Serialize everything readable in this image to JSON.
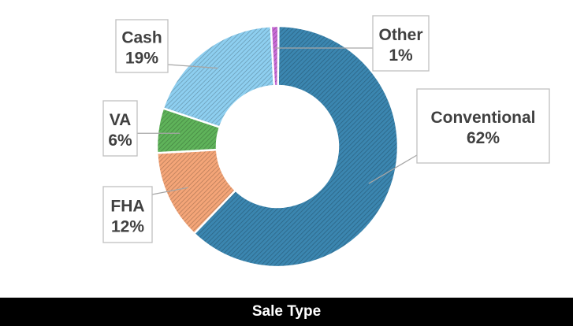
{
  "chart_data": {
    "type": "pie",
    "variant": "doughnut",
    "categories": [
      "Conventional",
      "FHA",
      "VA",
      "Cash",
      "Other"
    ],
    "values": [
      62,
      12,
      6,
      19,
      1
    ],
    "value_labels": [
      "62%",
      "12%",
      "6%",
      "19%",
      "1%"
    ],
    "colors": [
      "#3B86B0",
      "#F4A578",
      "#5FB35A",
      "#8ECFF0",
      "#C86BD6"
    ],
    "title": "",
    "legend": "none"
  },
  "caption": {
    "label": "Sale Type"
  }
}
